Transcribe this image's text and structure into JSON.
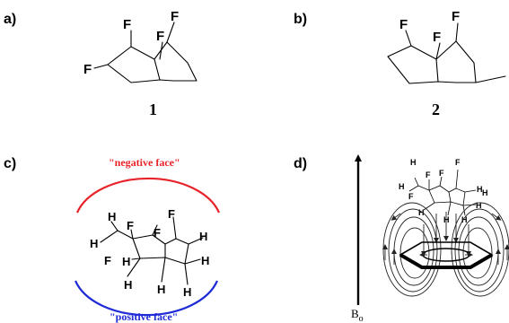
{
  "panels": {
    "a": {
      "label": "a)",
      "compound": "1",
      "substituents": [
        "F",
        "F",
        "F",
        "F"
      ]
    },
    "b": {
      "label": "b)",
      "compound": "2",
      "substituents": [
        "F",
        "F",
        "F"
      ]
    },
    "c": {
      "label": "c)",
      "negative_face": "\"negative face\"",
      "positive_face": "\"positive face\"",
      "negative_color": "#e8232a",
      "positive_color": "#1f2bd6",
      "atoms": [
        "H",
        "F",
        "F",
        "F",
        "H",
        "F",
        "H",
        "H",
        "H",
        "H",
        "H",
        "H"
      ]
    },
    "d": {
      "label": "d)",
      "field_label": "B",
      "field_subscript": "o",
      "atoms": [
        "H",
        "F",
        "F",
        "F",
        "H",
        "F",
        "H",
        "H",
        "H",
        "H",
        "H",
        "H"
      ]
    }
  }
}
